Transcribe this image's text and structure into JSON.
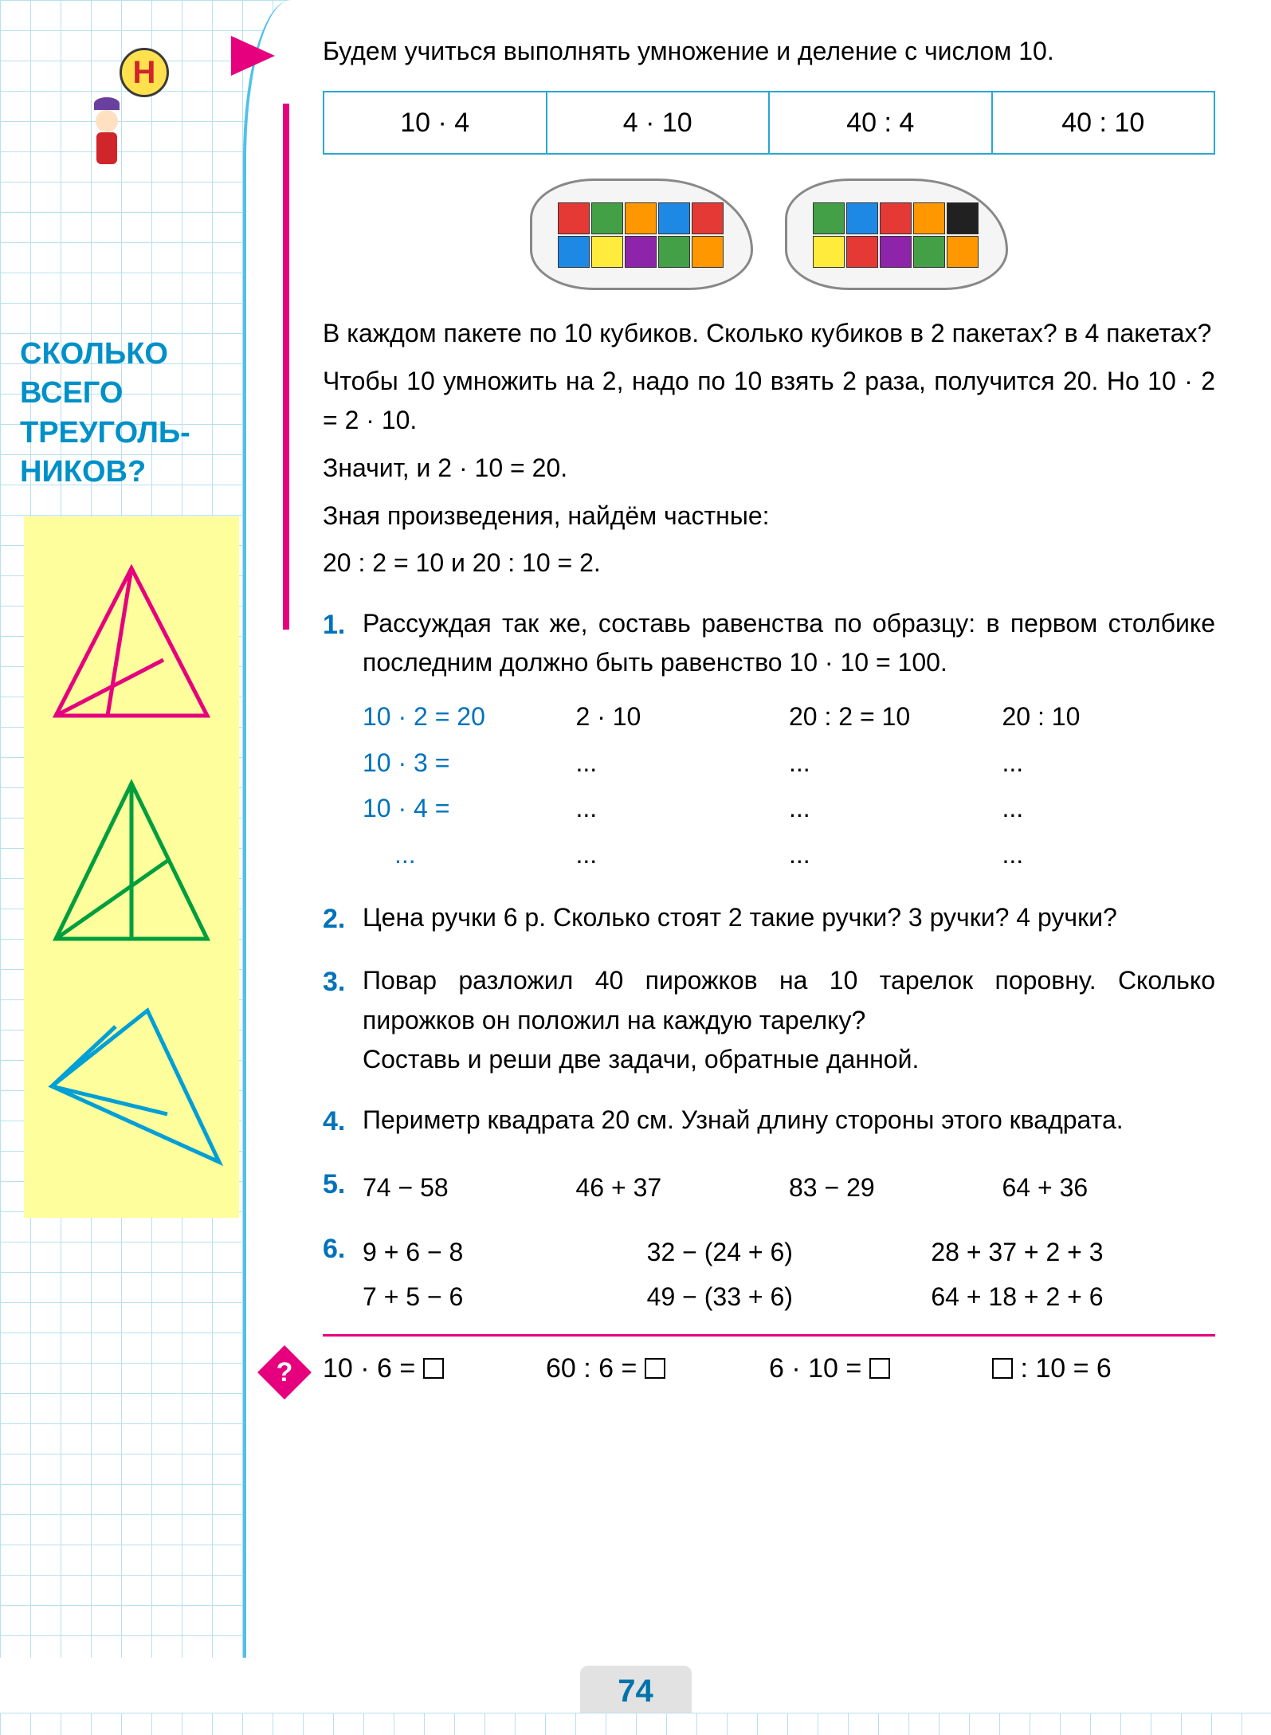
{
  "sidebar": {
    "badge_letter": "Н",
    "title": "СКОЛЬКО\nВСЕГО\nТРЕУГОЛЬ-\nНИКОВ?",
    "triangle_colors": {
      "t1": "#e6007e",
      "t2": "#009e3d",
      "t3": "#009fd6"
    }
  },
  "intro": "Будем учиться выполнять умножение и деление с числом 10.",
  "expr_table": [
    "10 · 4",
    "4 · 10",
    "40 : 4",
    "40 : 10"
  ],
  "cube_colors_bag1_row1": [
    "#e53935",
    "#43a047",
    "#ff9800",
    "#1e88e5",
    "#e53935"
  ],
  "cube_colors_bag1_row2": [
    "#1e88e5",
    "#ffeb3b",
    "#8e24aa",
    "#43a047",
    "#ff9800"
  ],
  "cube_colors_bag2_row1": [
    "#43a047",
    "#1e88e5",
    "#e53935",
    "#ff9800",
    "#212121"
  ],
  "cube_colors_bag2_row2": [
    "#ffeb3b",
    "#e53935",
    "#8e24aa",
    "#43a047",
    "#ff9800"
  ],
  "explain": {
    "p1": "В каждом пакете по 10 кубиков. Сколько кубиков в 2 пакетах? в 4 пакетах?",
    "p2": "Чтобы 10 умножить на 2, надо по 10 взять 2 раза, получится 20. Но 10 · 2 = 2 · 10.",
    "p3": "Значит, и 2 · 10 = 20.",
    "p4": "Зная произведения, найдём частные:",
    "p5": "20 : 2 = 10  и  20 : 10 = 2."
  },
  "tasks": {
    "t1": {
      "num": "1.",
      "text": "Рассуждая так же, составь равенства по образцу: в первом столбике последним должно быть равенство 10 · 10 = 100.",
      "grid": [
        [
          "10 · 2 = 20",
          "2 · 10",
          "20 : 2 = 10",
          "20 : 10"
        ],
        [
          "10 · 3  =",
          "...",
          "...",
          "..."
        ],
        [
          "10 · 4  =",
          "...",
          "...",
          "..."
        ],
        [
          "...",
          "...",
          "...",
          "..."
        ]
      ]
    },
    "t2": {
      "num": "2.",
      "text": "Цена ручки 6 р. Сколько стоят 2 такие ручки? 3 ручки? 4 ручки?"
    },
    "t3": {
      "num": "3.",
      "text": "Повар разложил 40 пирожков на 10 тарелок поровну. Сколько пирожков он положил на каждую тарелку?",
      "text2": "Составь и реши две задачи, обратные данной."
    },
    "t4": {
      "num": "4.",
      "text": "Периметр квадрата 20 см. Узнай длину стороны этого квадрата."
    },
    "t5": {
      "num": "5.",
      "cells": [
        "74 − 58",
        "46 + 37",
        "83 − 29",
        "64 + 36"
      ]
    },
    "t6": {
      "num": "6.",
      "row1": [
        "9 + 6 − 8",
        "32 − (24 + 6)",
        "28 + 37 + 2 + 3"
      ],
      "row2": [
        "7 + 5 − 6",
        "49 − (33 + 6)",
        "64 + 18 + 2 + 6"
      ]
    }
  },
  "final": {
    "c1": "10 · 6 =",
    "c2": "60 : 6 =",
    "c3": "6 · 10 =",
    "c4a": "",
    "c4b": " : 10 = 6"
  },
  "page_number": "74",
  "colors": {
    "accent_blue": "#0072bc",
    "accent_pink": "#e6007e",
    "grid_line": "#b8e0ef"
  }
}
